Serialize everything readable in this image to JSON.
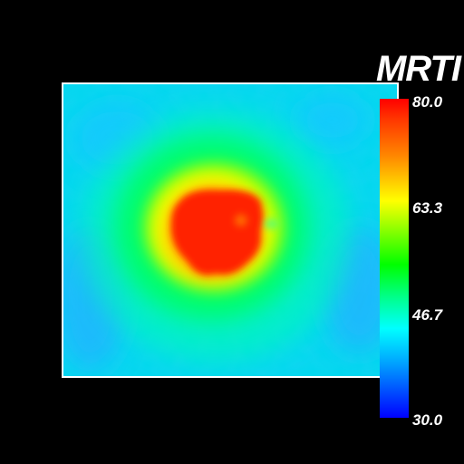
{
  "title": "MRTI",
  "colorbar": {
    "ticks": [
      "80.0",
      "63.3",
      "46.7",
      "30.0"
    ],
    "colors": [
      "#ff0000",
      "#ff8800",
      "#ffff00",
      "#00ff00",
      "#00ffff",
      "#0055ff",
      "#0000ff"
    ]
  }
}
